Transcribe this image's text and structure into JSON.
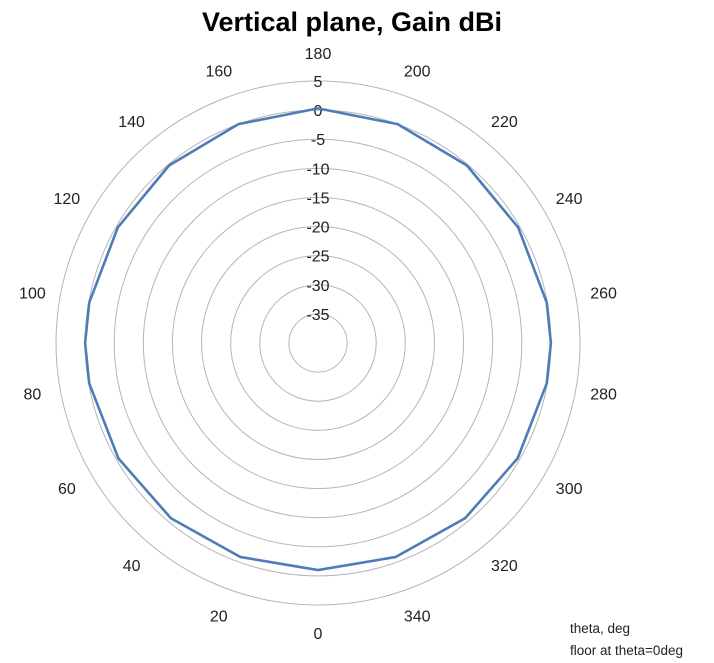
{
  "chart_data": {
    "type": "polar-line",
    "title": "Vertical plane, Gain dBi",
    "angle_unit": "deg",
    "angle_direction": "counterclockwise",
    "angle_zero_at": "bottom",
    "angle_ticks": [
      0,
      20,
      40,
      60,
      80,
      100,
      120,
      140,
      160,
      180,
      200,
      220,
      240,
      260,
      280,
      300,
      320,
      340
    ],
    "radial_range": [
      -40,
      5
    ],
    "radial_ticks": [
      5,
      0,
      -5,
      -10,
      -15,
      -20,
      -25,
      -30,
      -35
    ],
    "grid": true,
    "series": [
      {
        "color": "#4f7cb8",
        "theta": [
          0,
          20,
          40,
          60,
          80,
          90,
          100,
          120,
          140,
          160,
          180,
          200,
          220,
          240,
          260,
          270,
          280,
          300,
          320,
          340,
          360
        ],
        "gain": [
          -1.0,
          -0.9,
          -0.7,
          -0.4,
          -0.1,
          0.0,
          -0.1,
          -0.3,
          -0.2,
          0.0,
          0.3,
          0.0,
          -0.2,
          -0.3,
          -0.1,
          0.0,
          -0.1,
          -0.4,
          -0.7,
          -0.9,
          -1.0
        ]
      }
    ],
    "notes": [
      "theta, deg",
      "floor at theta=0deg"
    ]
  }
}
